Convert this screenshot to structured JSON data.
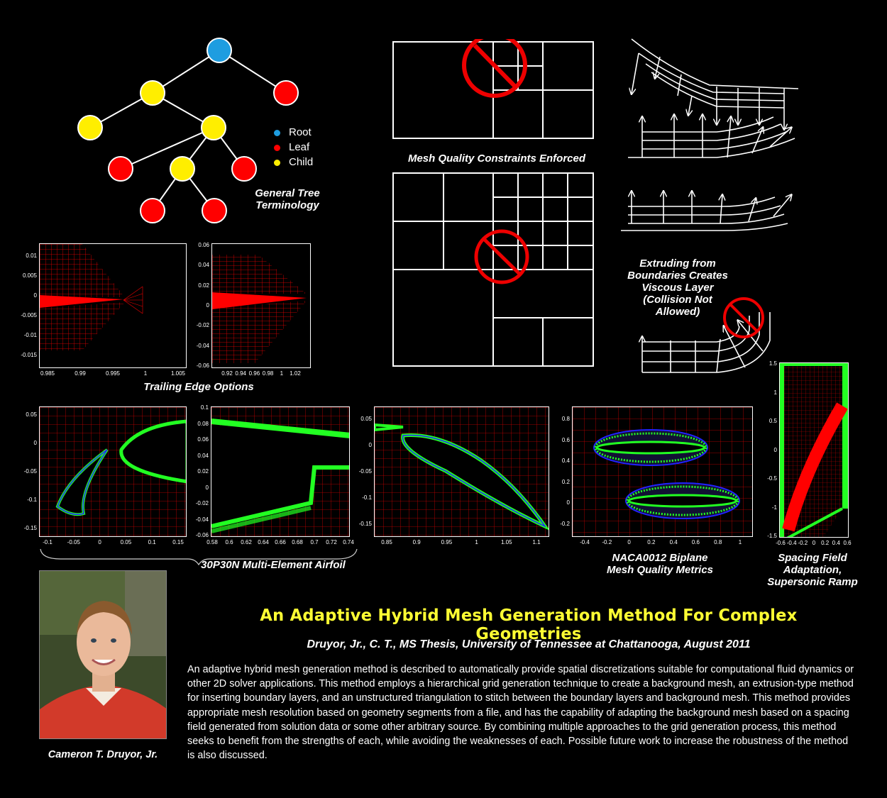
{
  "tree": {
    "caption_line1": "General Tree",
    "caption_line2": "Terminology",
    "legend": [
      {
        "label": "Root",
        "color": "#1e9de0"
      },
      {
        "label": "Leaf",
        "color": "#ff0000"
      },
      {
        "label": "Child",
        "color": "#ffee00"
      }
    ]
  },
  "mesh_quality": {
    "caption": "Mesh Quality Constraints Enforced"
  },
  "extrusion": {
    "caption_lines": [
      "Extruding from",
      "Boundaries Creates",
      "Viscous Layer",
      "(Collision Not",
      "Allowed)"
    ]
  },
  "trailing_edge": {
    "caption": "Trailing Edge Options",
    "left_plot": {
      "y_ticks": [
        "0.01",
        "0.005",
        "0",
        "-0.005",
        "-0.01",
        "-0.015"
      ],
      "x_ticks": [
        "0.985",
        "0.99",
        "0.995",
        "1",
        "1.005"
      ]
    },
    "right_plot": {
      "y_ticks": [
        "0.06",
        "0.04",
        "0.02",
        "0",
        "-0.02",
        "-0.04",
        "-0.06"
      ],
      "x_ticks": [
        "0.92",
        "0.94",
        "0.96",
        "0.98",
        "1",
        "1.02"
      ]
    }
  },
  "airfoil_plots": [
    {
      "y_ticks": [
        "0.05",
        "0",
        "-0.05",
        "-0.1",
        "-0.15"
      ],
      "x_ticks": [
        "-0.1",
        "-0.05",
        "0",
        "0.05",
        "0.1",
        "0.15"
      ]
    },
    {
      "y_ticks": [
        "0.1",
        "0.08",
        "0.06",
        "0.04",
        "0.02",
        "0",
        "-0.02",
        "-0.04",
        "-0.06"
      ],
      "x_ticks": [
        "0.58",
        "0.6",
        "0.62",
        "0.64",
        "0.66",
        "0.68",
        "0.7",
        "0.72",
        "0.74"
      ]
    },
    {
      "y_ticks": [
        "0.05",
        "0",
        "-0.05",
        "-0.1",
        "-0.15"
      ],
      "x_ticks": [
        "0.85",
        "0.9",
        "0.95",
        "1",
        "1.05",
        "1.1"
      ]
    },
    {
      "y_ticks": [
        "0.8",
        "0.6",
        "0.4",
        "0.2",
        "0",
        "-0.2"
      ],
      "x_ticks": [
        "-0.4",
        "-0.2",
        "0",
        "0.2",
        "0.4",
        "0.6",
        "0.8",
        "1"
      ]
    },
    {
      "y_ticks": [
        "1.5",
        "1",
        "0.5",
        "0",
        "-0.5",
        "-1",
        "-1.5"
      ],
      "x_ticks": [
        "-0.6",
        "-0.4",
        "-0.2",
        "0",
        "0.2",
        "0.4",
        "0.6"
      ]
    }
  ],
  "multi_element_caption": "30P30N Multi-Element Airfoil",
  "biplane_caption_lines": [
    "NACA0012 Biplane",
    "Mesh Quality Metrics"
  ],
  "spacing_caption_lines": [
    "Spacing Field",
    "Adaptation,",
    "Supersonic Ramp"
  ],
  "author_name": "Cameron T. Druyor, Jr.",
  "title": "An Adaptive Hybrid Mesh Generation Method For Complex Geometries",
  "author_line": "Druyor, Jr., C. T., MS Thesis, University of Tennessee at Chattanooga,  August 2011",
  "abstract": "An adaptive hybrid mesh generation method is described to automatically provide spatial discretizations suitable for computational fluid dynamics or other 2D solver applications. This method employs a hierarchical grid generation technique to create a background mesh, an extrusion-type method for inserting boundary layers, and an unstructured triangulation to stitch between the boundary layers and background mesh. This method provides appropriate mesh resolution based on geometry segments from a file, and has the capability of adapting the background mesh based on a spacing field generated from solution data or some other arbitrary source. By combining multiple approaches to the grid generation process, this method seeks to benefit from the strengths of each, while avoiding the weaknesses of each. Possible future work to increase the robustness of the method is also discussed."
}
